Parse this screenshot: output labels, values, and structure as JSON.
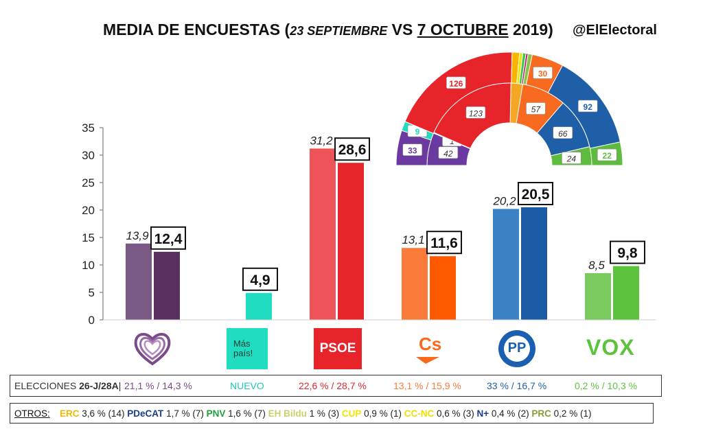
{
  "header": {
    "title_prefix": "MEDIA DE ENCUESTAS (",
    "title_date1": "23 SEPTIEMBRE",
    "title_vs": " VS ",
    "title_date2": "7 OCTUBRE",
    "title_year": " 2019)",
    "handle": "@ElElectoral"
  },
  "chart_data": {
    "type": "bar",
    "ylim": [
      0,
      35
    ],
    "yticks": [
      "35",
      "30",
      "25",
      "20",
      "15",
      "10",
      "5",
      "0"
    ],
    "categories": [
      "Unidas Podemos",
      "Más País",
      "PSOE",
      "Cs",
      "PP",
      "VOX"
    ],
    "series": [
      {
        "values": [
          13.9,
          null,
          31.2,
          13.1,
          20.2,
          8.5
        ],
        "labels": [
          "13,9",
          "",
          "31,2",
          "13,1",
          "20,2",
          "8,5"
        ],
        "colors": [
          "#7a5a85",
          "",
          "#ee5357",
          "#fa7b3a",
          "#3b82c4",
          "#79c95c"
        ]
      },
      {
        "values": [
          12.4,
          4.9,
          28.6,
          11.6,
          20.5,
          9.8
        ],
        "labels": [
          "12,4",
          "4,9",
          "28,6",
          "11,6",
          "20,5",
          "9,8"
        ],
        "colors": [
          "#57305f",
          "#20dcc0",
          "#e8242b",
          "#ff5a00",
          "#1a5ba6",
          "#5ec33c"
        ]
      }
    ],
    "hemicycle": {
      "inner": [
        {
          "value": 42,
          "label": "42",
          "color": "#6b3aa0"
        },
        {
          "value": 1,
          "label": "1",
          "color": "#2fc6b5"
        },
        {
          "value": 123,
          "label": "123",
          "color": "#e8242b"
        },
        {
          "value": 15,
          "label": "",
          "color": "#f5a623"
        },
        {
          "value": 57,
          "label": "57",
          "color": "#f86a1f"
        },
        {
          "value": 66,
          "label": "66",
          "color": "#1f5fa8"
        },
        {
          "value": 24,
          "label": "24",
          "color": "#5dbb3e"
        }
      ],
      "outer": [
        {
          "value": 33,
          "label": "33",
          "color": "#6b3aa0"
        },
        {
          "value": 9,
          "label": "9",
          "color": "#20dcc0"
        },
        {
          "value": 126,
          "label": "126",
          "color": "#e8242b"
        },
        {
          "value": 7,
          "label": "",
          "color": "#f7b500"
        },
        {
          "value": 3,
          "label": "",
          "color": "#f1e400"
        },
        {
          "value": 3,
          "label": "",
          "color": "#3cc84a"
        },
        {
          "value": 2,
          "label": "",
          "color": "#c2187a"
        },
        {
          "value": 4,
          "label": "",
          "color": "#8bc34a"
        },
        {
          "value": 30,
          "label": "30",
          "color": "#f86a1f"
        },
        {
          "value": 92,
          "label": "92",
          "color": "#1f5fa8"
        },
        {
          "value": 22,
          "label": "22",
          "color": "#5dbb3e"
        }
      ]
    }
  },
  "logos": {
    "mas_pais_line1": "Más",
    "mas_pais_line2": "país!",
    "psoe": "PSOE",
    "cs": "Cs",
    "pp": "PP",
    "vox": "VOX"
  },
  "elecciones": {
    "label_plain": "ELECCIONES ",
    "label_bold": "26-J/28A",
    "sep": "|",
    "values": [
      "21,1 % / 14,3 %",
      "NUEVO",
      "22,6  % / 28,7 %",
      "13,1 % / 15,9 %",
      "33 % / 16,7 %",
      "0,2 % / 10,3 %"
    ],
    "colors": [
      "#7a4a8a",
      "#20c8b0",
      "#e8242b",
      "#fa7b3a",
      "#1f5fa8",
      "#5ec33c"
    ]
  },
  "otros": {
    "label": "OTROS:",
    "items": [
      {
        "name": "ERC",
        "value": "3,6 % (14)",
        "color": "#f5b800"
      },
      {
        "name": "PDeCAT",
        "value": "1,7 % (7)",
        "color": "#1a3c8c"
      },
      {
        "name": "PNV",
        "value": "1,6 % (7)",
        "color": "#1e9e3a"
      },
      {
        "name": "EH Bildu",
        "value": "1 % (3)",
        "color": "#c8d26a"
      },
      {
        "name": "CUP",
        "value": "0,9 % (1)",
        "color": "#f5e400"
      },
      {
        "name": "CC-NC",
        "value": "0,6 % (3)",
        "color": "#f0e000"
      },
      {
        "name": "N+",
        "value": "0,4 % (2)",
        "color": "#1a3c8c"
      },
      {
        "name": "PRC",
        "value": "0,2 % (1)",
        "color": "#8a9a3a"
      }
    ]
  }
}
